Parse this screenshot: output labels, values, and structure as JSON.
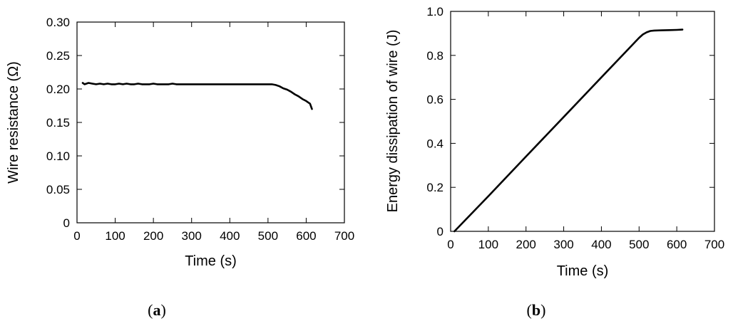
{
  "chart_data": [
    {
      "type": "line",
      "panel_label": "a",
      "title": "",
      "xlabel": "Time (s)",
      "ylabel": "Wire resistance (Ω)",
      "xlim": [
        0,
        700
      ],
      "ylim": [
        0,
        0.3
      ],
      "xticks": [
        "0",
        "100",
        "200",
        "300",
        "400",
        "500",
        "600",
        "700"
      ],
      "yticks": [
        "0",
        "0.05",
        "0.10",
        "0.15",
        "0.20",
        "0.25",
        "0.30"
      ],
      "grid": false,
      "legend": "none",
      "series": [
        {
          "x": [
            15,
            20,
            30,
            40,
            50,
            60,
            70,
            80,
            90,
            100,
            110,
            120,
            130,
            140,
            150,
            160,
            170,
            180,
            190,
            200,
            210,
            220,
            230,
            240,
            250,
            260,
            270,
            280,
            290,
            300,
            310,
            320,
            330,
            340,
            350,
            360,
            370,
            380,
            390,
            400,
            410,
            420,
            430,
            440,
            450,
            460,
            470,
            480,
            490,
            500,
            510,
            520,
            530,
            540,
            550,
            560,
            570,
            580,
            590,
            600,
            610,
            615
          ],
          "y": [
            0.209,
            0.207,
            0.209,
            0.208,
            0.207,
            0.208,
            0.207,
            0.208,
            0.207,
            0.207,
            0.208,
            0.207,
            0.208,
            0.207,
            0.207,
            0.208,
            0.207,
            0.207,
            0.207,
            0.208,
            0.207,
            0.207,
            0.207,
            0.207,
            0.208,
            0.207,
            0.207,
            0.207,
            0.207,
            0.207,
            0.207,
            0.207,
            0.207,
            0.207,
            0.207,
            0.207,
            0.207,
            0.207,
            0.207,
            0.207,
            0.207,
            0.207,
            0.207,
            0.207,
            0.207,
            0.207,
            0.207,
            0.207,
            0.207,
            0.207,
            0.207,
            0.206,
            0.204,
            0.201,
            0.199,
            0.196,
            0.192,
            0.189,
            0.185,
            0.182,
            0.178,
            0.17
          ]
        }
      ]
    },
    {
      "type": "line",
      "panel_label": "b",
      "title": "",
      "xlabel": "Time (s)",
      "ylabel": "Energy dissipation of wire (J)",
      "xlim": [
        0,
        700
      ],
      "ylim": [
        0,
        1.0
      ],
      "xticks": [
        "0",
        "100",
        "200",
        "300",
        "400",
        "500",
        "600",
        "700"
      ],
      "yticks": [
        "0",
        "0.2",
        "0.4",
        "0.6",
        "0.8",
        "1.0"
      ],
      "grid": false,
      "legend": "none",
      "series": [
        {
          "x": [
            10,
            100,
            200,
            300,
            400,
            500,
            510,
            520,
            530,
            540,
            560,
            580,
            600,
            615
          ],
          "y": [
            0.0,
            0.16,
            0.34,
            0.52,
            0.7,
            0.88,
            0.895,
            0.905,
            0.911,
            0.913,
            0.914,
            0.915,
            0.916,
            0.917
          ]
        }
      ]
    }
  ]
}
